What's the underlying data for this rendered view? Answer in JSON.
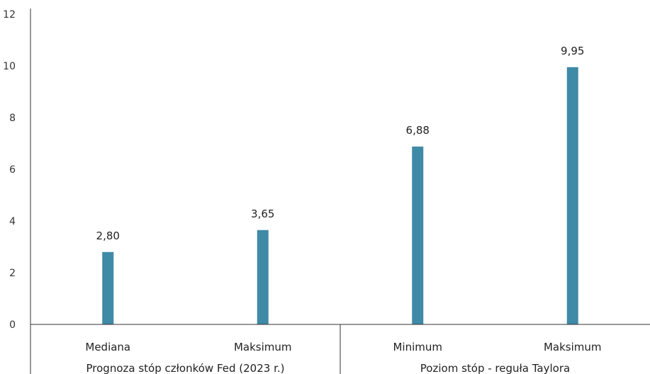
{
  "chart_data": {
    "type": "bar",
    "categories": [
      "Mediana",
      "Maksimum",
      "Minimum",
      "Maksimum"
    ],
    "groups": [
      {
        "label": "Prognoza stóp członków Fed (2023 r.)",
        "categories": [
          "Mediana",
          "Maksimum"
        ]
      },
      {
        "label": "Poziom stóp - reguła Taylora",
        "categories": [
          "Minimum",
          "Maksimum"
        ]
      }
    ],
    "values": [
      2.8,
      3.65,
      6.88,
      9.95
    ],
    "data_labels": [
      "2,80",
      "3,65",
      "6,88",
      "9,95"
    ],
    "ylim": [
      0,
      12
    ],
    "yticks": [
      "0",
      "2",
      "4",
      "6",
      "8",
      "10",
      "12"
    ],
    "title": "",
    "xlabel": "",
    "ylabel": "",
    "bar_color": "#3f8aa6",
    "grid": false
  }
}
